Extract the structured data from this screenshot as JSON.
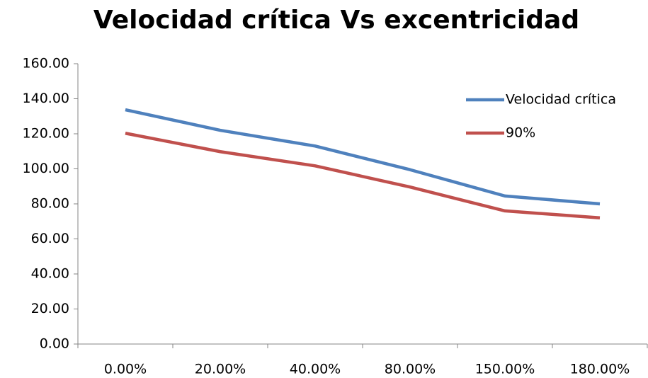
{
  "chart_data": {
    "type": "line",
    "title": "Velocidad crítica Vs excentricidad",
    "categories": [
      "0.00%",
      "20.00%",
      "40.00%",
      "80.00%",
      "150.00%",
      "180.00%"
    ],
    "series": [
      {
        "name": "Velocidad crítica",
        "color": "#4f81bd",
        "values": [
          133.7,
          122,
          113,
          99.5,
          84.5,
          80
        ]
      },
      {
        "name": "90%",
        "color": "#c0504d",
        "values": [
          120.3,
          109.8,
          101.7,
          89.6,
          76,
          72
        ]
      }
    ],
    "ylim": [
      0,
      160
    ],
    "yticks": [
      {
        "value": 0,
        "label": "0.00"
      },
      {
        "value": 20,
        "label": "20.00"
      },
      {
        "value": 40,
        "label": "40.00"
      },
      {
        "value": 60,
        "label": "60.00"
      },
      {
        "value": 80,
        "label": "80.00"
      },
      {
        "value": 100,
        "label": "100.00"
      },
      {
        "value": 120,
        "label": "120.00"
      },
      {
        "value": 140,
        "label": "140.00"
      },
      {
        "value": 160,
        "label": "160.00"
      }
    ],
    "grid": false,
    "legend": "right"
  }
}
